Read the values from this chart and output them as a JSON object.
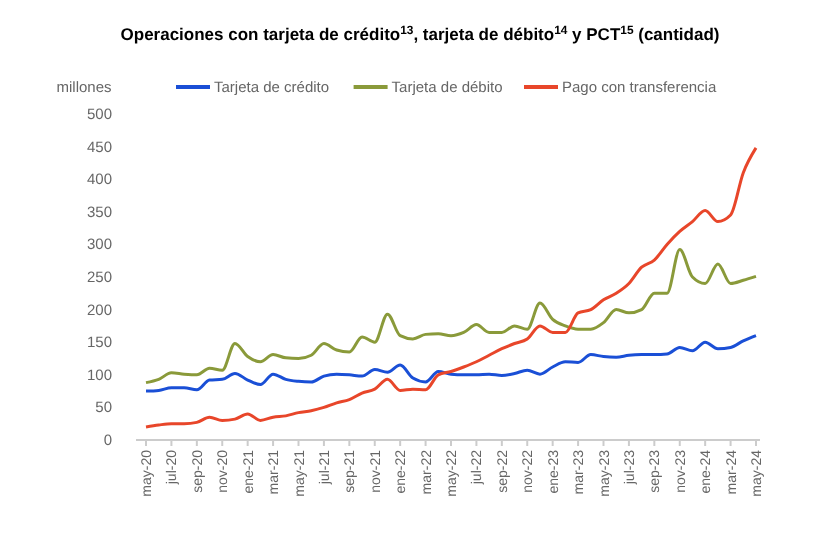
{
  "chart_data": {
    "type": "line",
    "title": "Operaciones con tarjeta de crédito$^{13}$, tarjeta de débito$^{14}$ y PCT$^{15}$ (cantidad)",
    "ylabel": "millones",
    "categories": [
      "may-20",
      null,
      "jul-20",
      null,
      "sep-20",
      null,
      "nov-20",
      null,
      "ene-21",
      null,
      "mar-21",
      null,
      "may-21",
      null,
      "jul-21",
      null,
      "sep-21",
      null,
      "nov-21",
      null,
      "ene-22",
      null,
      "mar-22",
      null,
      "may-22",
      null,
      "jul-22",
      null,
      "sep-22",
      null,
      "nov-22",
      null,
      "ene-23",
      null,
      "mar-23",
      null,
      "may-23",
      null,
      "jul-23",
      null,
      "sep-23",
      null,
      "nov-23",
      null,
      "ene-24",
      null,
      "mar-24",
      null,
      "may-24"
    ],
    "series": [
      {
        "name": "Tarjeta de crédito",
        "color": "#1a4fd6",
        "values": [
          75,
          76,
          80,
          80,
          77,
          92,
          93,
          102,
          92,
          85,
          101,
          93,
          90,
          89,
          98,
          101,
          100,
          98,
          108,
          104,
          115,
          95,
          89,
          105,
          101,
          100,
          100,
          101,
          99,
          102,
          107,
          101,
          112,
          120,
          119,
          131,
          128,
          127,
          130,
          131,
          131,
          132,
          142,
          137,
          150,
          140,
          142,
          152,
          160
        ]
      },
      {
        "name": "Tarjeta de débito",
        "color": "#8a9a3a",
        "values": [
          88,
          93,
          103,
          101,
          100,
          110,
          107,
          148,
          128,
          120,
          131,
          126,
          125,
          130,
          148,
          138,
          135,
          158,
          150,
          193,
          160,
          155,
          162,
          163,
          160,
          165,
          177,
          165,
          165,
          175,
          170,
          210,
          185,
          175,
          170,
          170,
          180,
          200,
          195,
          200,
          225,
          225,
          292,
          250,
          240,
          270,
          240,
          245,
          251
        ]
      },
      {
        "name": "Pago con transferencia",
        "color": "#e8462a",
        "values": [
          20,
          23,
          25,
          25,
          27,
          35,
          30,
          32,
          40,
          30,
          35,
          37,
          42,
          45,
          50,
          57,
          62,
          72,
          78,
          93,
          76,
          78,
          77,
          100,
          105,
          112,
          120,
          130,
          140,
          148,
          155,
          175,
          165,
          165,
          195,
          200,
          215,
          225,
          240,
          265,
          276,
          300,
          320,
          335,
          352,
          335,
          345,
          410,
          448
        ]
      }
    ],
    "ylim": [
      0,
      500
    ],
    "yticks": [
      0,
      50,
      100,
      150,
      200,
      250,
      300,
      350,
      400,
      450,
      500
    ],
    "grid": false,
    "legend": "top"
  }
}
